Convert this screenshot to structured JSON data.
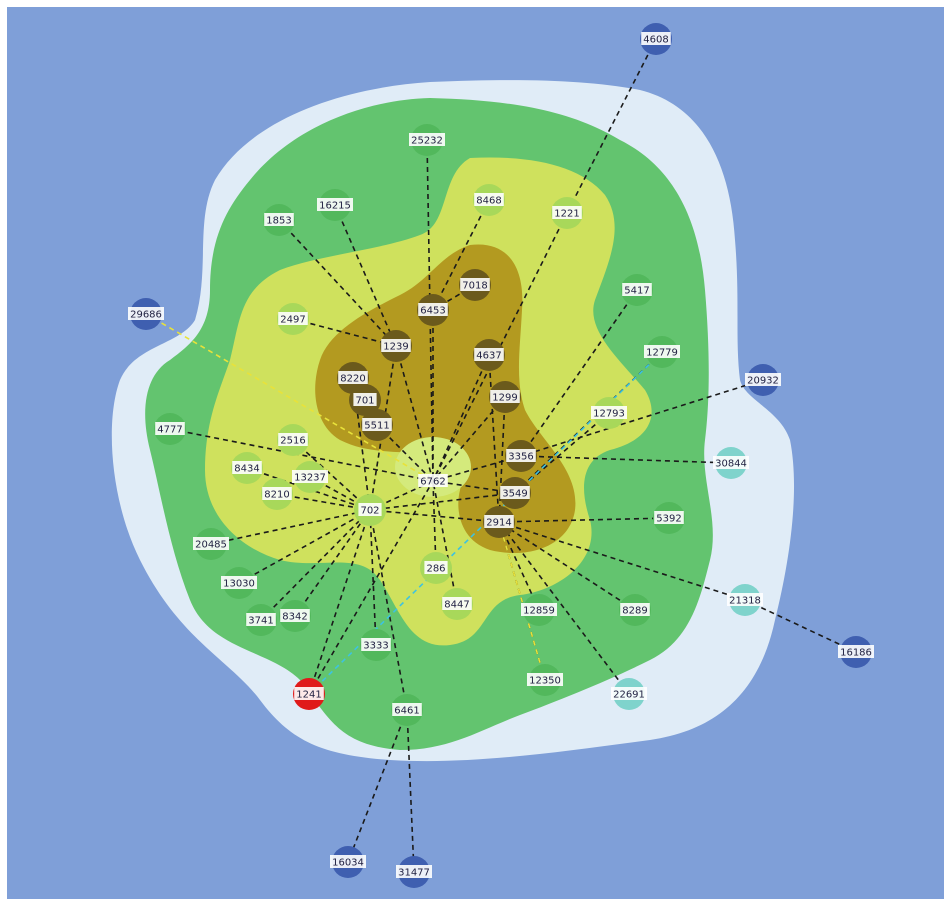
{
  "colors": {
    "background": "#7f9fd8",
    "halo": "#e0ecf7",
    "band_green": "#63c46f",
    "band_yellow": "#cfe15d",
    "band_olive": "#b39a20",
    "core": "#d4ea7c",
    "edge": "#1a1a1a",
    "edge_yellow": "#e8e23a",
    "edge_cyan": "#3ec3e0",
    "node_blue": "#3f5fb0",
    "node_cyan": "#7fd3cc",
    "node_green": "#52b85c",
    "node_lime": "#a8d85a",
    "node_dark": "#6b5a1c",
    "node_red": "#e01a1a",
    "label_bg": "#ffffff"
  },
  "nodes": [
    {
      "id": "4608",
      "group": "blue"
    },
    {
      "id": "25232",
      "group": "green"
    },
    {
      "id": "16215",
      "group": "green"
    },
    {
      "id": "1853",
      "group": "green"
    },
    {
      "id": "8468",
      "group": "lime"
    },
    {
      "id": "1221",
      "group": "lime"
    },
    {
      "id": "7018",
      "group": "dark"
    },
    {
      "id": "6453",
      "group": "dark"
    },
    {
      "id": "5417",
      "group": "green"
    },
    {
      "id": "29686",
      "group": "blue"
    },
    {
      "id": "2497",
      "group": "lime"
    },
    {
      "id": "1239",
      "group": "dark"
    },
    {
      "id": "4637",
      "group": "dark"
    },
    {
      "id": "12779",
      "group": "green"
    },
    {
      "id": "20932",
      "group": "blue"
    },
    {
      "id": "8220",
      "group": "dark"
    },
    {
      "id": "701",
      "group": "dark"
    },
    {
      "id": "1299",
      "group": "dark"
    },
    {
      "id": "12793",
      "group": "lime"
    },
    {
      "id": "5511",
      "group": "dark"
    },
    {
      "id": "4777",
      "group": "green"
    },
    {
      "id": "2516",
      "group": "lime"
    },
    {
      "id": "3356",
      "group": "dark"
    },
    {
      "id": "30844",
      "group": "cyan"
    },
    {
      "id": "8434",
      "group": "lime"
    },
    {
      "id": "13237",
      "group": "lime"
    },
    {
      "id": "6762",
      "group": "core"
    },
    {
      "id": "8210",
      "group": "lime"
    },
    {
      "id": "3549",
      "group": "dark"
    },
    {
      "id": "702",
      "group": "lime"
    },
    {
      "id": "2914",
      "group": "dark"
    },
    {
      "id": "5392",
      "group": "green"
    },
    {
      "id": "20485",
      "group": "green"
    },
    {
      "id": "286",
      "group": "lime"
    },
    {
      "id": "13030",
      "group": "green"
    },
    {
      "id": "21318",
      "group": "cyan"
    },
    {
      "id": "8447",
      "group": "lime"
    },
    {
      "id": "12859",
      "group": "green"
    },
    {
      "id": "8289",
      "group": "green"
    },
    {
      "id": "3741",
      "group": "green"
    },
    {
      "id": "8342",
      "group": "green"
    },
    {
      "id": "3333",
      "group": "green"
    },
    {
      "id": "16186",
      "group": "blue"
    },
    {
      "id": "12350",
      "group": "green"
    },
    {
      "id": "1241",
      "group": "red"
    },
    {
      "id": "22691",
      "group": "cyan"
    },
    {
      "id": "6461",
      "group": "green"
    },
    {
      "id": "16034",
      "group": "blue"
    },
    {
      "id": "31477",
      "group": "blue"
    }
  ],
  "edges": [
    [
      "4608",
      "1221"
    ],
    [
      "1221",
      "6762"
    ],
    [
      "25232",
      "6762"
    ],
    [
      "1853",
      "1239"
    ],
    [
      "16215",
      "1239"
    ],
    [
      "8468",
      "6453"
    ],
    [
      "6453",
      "6762"
    ],
    [
      "7018",
      "6453"
    ],
    [
      "5417",
      "3356"
    ],
    [
      "2497",
      "1239"
    ],
    [
      "1239",
      "6762"
    ],
    [
      "4637",
      "6762"
    ],
    [
      "12779",
      "3549"
    ],
    [
      "20932",
      "3356"
    ],
    [
      "8220",
      "701"
    ],
    [
      "701",
      "5511"
    ],
    [
      "5511",
      "6762"
    ],
    [
      "1299",
      "6762"
    ],
    [
      "12793",
      "3549"
    ],
    [
      "4777",
      "6762"
    ],
    [
      "2516",
      "702"
    ],
    [
      "3356",
      "6762"
    ],
    [
      "3356",
      "30844"
    ],
    [
      "8434",
      "702"
    ],
    [
      "13237",
      "702"
    ],
    [
      "8210",
      "702"
    ],
    [
      "702",
      "6762"
    ],
    [
      "3549",
      "6762"
    ],
    [
      "3549",
      "702"
    ],
    [
      "2914",
      "702"
    ],
    [
      "2914",
      "5392"
    ],
    [
      "2914",
      "21318"
    ],
    [
      "21318",
      "16186"
    ],
    [
      "20485",
      "702"
    ],
    [
      "286",
      "6762"
    ],
    [
      "13030",
      "702"
    ],
    [
      "8447",
      "6762"
    ],
    [
      "12859",
      "2914"
    ],
    [
      "8289",
      "2914"
    ],
    [
      "3741",
      "702"
    ],
    [
      "8342",
      "702"
    ],
    [
      "3333",
      "702"
    ],
    [
      "12350",
      "2914"
    ],
    [
      "1241",
      "702"
    ],
    [
      "1241",
      "6762"
    ],
    [
      "22691",
      "2914"
    ],
    [
      "6461",
      "702"
    ],
    [
      "6461",
      "16034"
    ],
    [
      "6461",
      "31477"
    ],
    [
      "8220",
      "702"
    ],
    [
      "1239",
      "702"
    ],
    [
      "4637",
      "2914"
    ],
    [
      "1299",
      "2914"
    ]
  ],
  "colored_edges": [
    {
      "from": "29686",
      "to": "6762",
      "color": "yellow"
    },
    {
      "from": "12779",
      "to": "1241",
      "color": "cyan"
    },
    {
      "from": "12350",
      "to": "2914",
      "color": "yellow"
    }
  ]
}
